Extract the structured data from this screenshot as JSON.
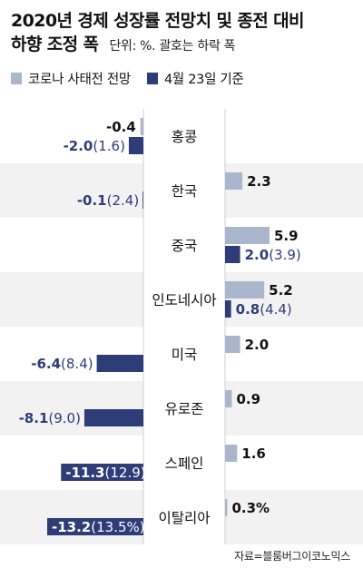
{
  "header": {
    "title_line1": "2020년 경제 성장률 전망치 및 종전 대비",
    "title_line2": "하향 조정 폭",
    "subtitle": "단위: %. 괄호는 하락 폭"
  },
  "colors": {
    "series1": "#a9b6cc",
    "series2": "#2e3d78",
    "band": "#f2f2f2"
  },
  "source": "자료=블룸버그이코노믹스",
  "chart_data": {
    "type": "bar",
    "orientation": "horizontal",
    "categories": [
      "홍콩",
      "한국",
      "중국",
      "인도네시아",
      "미국",
      "유로존",
      "스페인",
      "이탈리아"
    ],
    "series": [
      {
        "name": "코로나 사태전 전망",
        "values": [
          -0.4,
          2.3,
          5.9,
          5.2,
          2.0,
          0.9,
          1.6,
          0.3
        ]
      },
      {
        "name": "4월 23일 기준",
        "values": [
          -2.0,
          -0.1,
          2.0,
          0.8,
          -6.4,
          -8.1,
          -11.3,
          -13.2
        ]
      }
    ],
    "label_series1": [
      "-0.4",
      "2.3",
      "5.9",
      "5.2",
      "2.0",
      "0.9",
      "1.6",
      "0.3%"
    ],
    "label_series2": [
      "-2.0",
      "-0.1",
      "2.0",
      "0.8",
      "-6.4",
      "-8.1",
      "-11.3",
      "-13.2"
    ],
    "drop_labels": [
      "(1.6)",
      "(2.4)",
      "(3.9)",
      "(4.4)",
      "(8.4)",
      "(9.0)",
      "(12.9)",
      "(13.5%)"
    ],
    "unit": "%"
  }
}
